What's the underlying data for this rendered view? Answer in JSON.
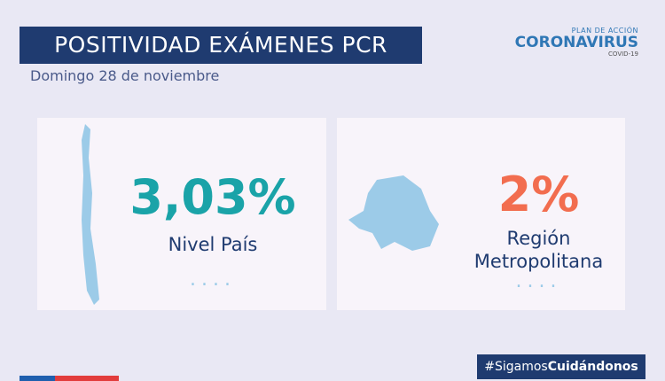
{
  "header": {
    "title": "POSITIVIDAD EXÁMENES PCR",
    "subtitle": "Domingo 28 de noviembre"
  },
  "logo": {
    "top": "PLAN DE ACCIÓN",
    "main": "CORONAVIRUS",
    "bottom": "COVID-19"
  },
  "cards": [
    {
      "value": "3,03%",
      "lines": [
        "Nivel País"
      ]
    },
    {
      "value": "2%",
      "lines": [
        "Región",
        "Metropolitana"
      ]
    }
  ],
  "footer": {
    "hashtag": "#Sigamos",
    "hashtag_bold": "Cuidándonos"
  }
}
